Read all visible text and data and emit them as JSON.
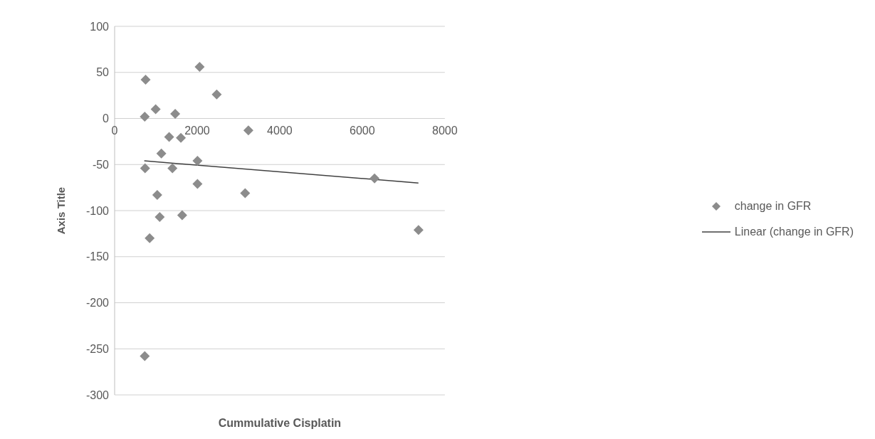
{
  "chart_data": {
    "type": "scatter",
    "xlabel": "Cummulative Cisplatin",
    "ylabel": "Axis Title",
    "xlim": [
      0,
      8000
    ],
    "xticks": [
      0,
      2000,
      4000,
      6000,
      8000
    ],
    "ylim": [
      -300,
      100
    ],
    "yticks": [
      -300,
      -250,
      -200,
      -150,
      -100,
      -50,
      0,
      50,
      100
    ],
    "grid": "y",
    "legend": "right",
    "series": [
      {
        "name": "change in GFR",
        "marker": "diamond",
        "color": "#8c8c8c",
        "x": [
          750,
          730,
          994,
          1467,
          2059,
          2473,
          1321,
          1605,
          1132,
          737,
          1400,
          2007,
          2007,
          1033,
          1092,
          1636,
          848,
          3241,
          3162,
          730,
          6297,
          7362
        ],
        "values": [
          42,
          2,
          10,
          5,
          56,
          26,
          -20,
          -21,
          -38,
          -54,
          -54,
          -46,
          -71,
          -83,
          -107,
          -105,
          -130,
          -13,
          -81,
          -258,
          -65,
          -121
        ]
      },
      {
        "name": "Linear (change in GFR)",
        "type": "line",
        "marker": "none",
        "color": "#404040",
        "x": [
          718,
          7360
        ],
        "values": [
          -46,
          -70
        ]
      }
    ]
  }
}
